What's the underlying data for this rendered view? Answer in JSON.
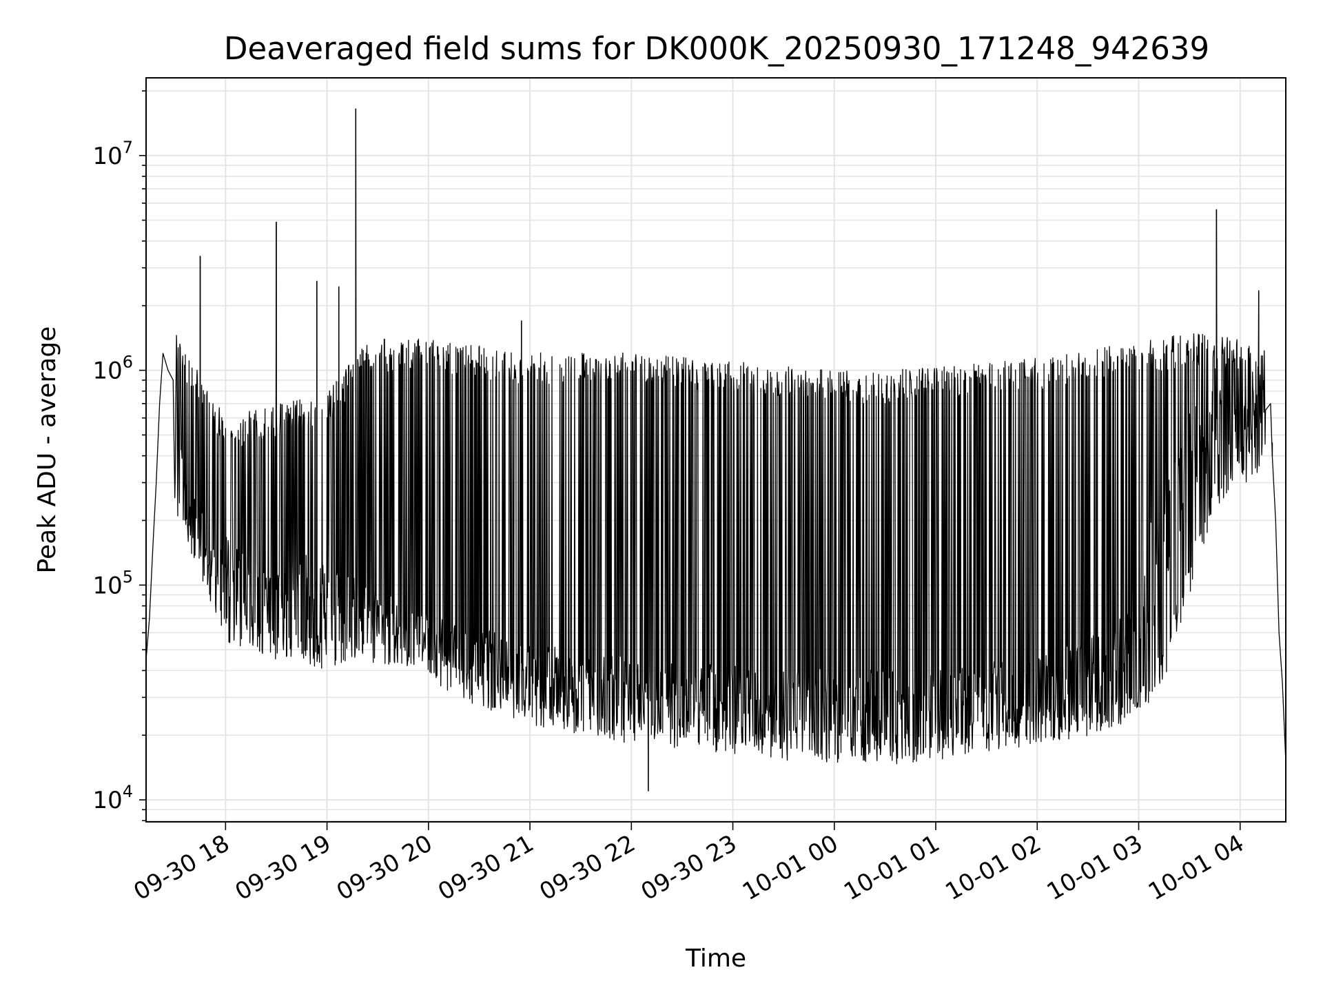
{
  "chart_data": {
    "type": "line",
    "title": "Deaveraged field sums for DK000K_20250930_171248_942639",
    "xlabel": "Time",
    "ylabel": "Peak ADU - average",
    "x_axis": "datetime",
    "y_scale": "log",
    "grid": true,
    "legend": "none",
    "line_color": "#000000",
    "xlim": [
      "2025-09-30 17:13",
      "2025-10-01 04:27"
    ],
    "ylim": [
      7900,
      23000000
    ],
    "x_ticks": [
      {
        "t": "2025-09-30 18:00",
        "label": "09-30 18"
      },
      {
        "t": "2025-09-30 19:00",
        "label": "09-30 19"
      },
      {
        "t": "2025-09-30 20:00",
        "label": "09-30 20"
      },
      {
        "t": "2025-09-30 21:00",
        "label": "09-30 21"
      },
      {
        "t": "2025-09-30 22:00",
        "label": "09-30 22"
      },
      {
        "t": "2025-09-30 23:00",
        "label": "09-30 23"
      },
      {
        "t": "2025-10-01 00:00",
        "label": "10-01 00"
      },
      {
        "t": "2025-10-01 01:00",
        "label": "10-01 01"
      },
      {
        "t": "2025-10-01 02:00",
        "label": "10-01 02"
      },
      {
        "t": "2025-10-01 03:00",
        "label": "10-01 03"
      },
      {
        "t": "2025-10-01 04:00",
        "label": "10-01 04"
      }
    ],
    "y_ticks": [
      {
        "value": 10000,
        "base": "10",
        "exp": "4"
      },
      {
        "value": 100000,
        "base": "10",
        "exp": "5"
      },
      {
        "value": 1000000,
        "base": "10",
        "exp": "6"
      },
      {
        "value": 10000000,
        "base": "10",
        "exp": "7"
      }
    ],
    "series": [
      {
        "points": [
          [
            "2025-09-30 17:13",
            45000
          ],
          [
            "2025-09-30 17:15",
            70000
          ],
          [
            "2025-09-30 17:17",
            150000
          ],
          [
            "2025-09-30 17:19",
            300000
          ],
          [
            "2025-09-30 17:21",
            700000
          ],
          [
            "2025-09-30 17:23",
            1200000
          ],
          [
            "2025-09-30 17:26",
            1000000
          ],
          [
            "2025-09-30 17:29",
            900000
          ],
          [
            "2025-09-30 17:32",
            500000
          ],
          [
            "2025-09-30 17:35",
            300000
          ],
          [
            "2025-09-30 17:40",
            250000
          ],
          [
            "2025-09-30 17:50",
            150000
          ],
          [
            "2025-09-30 18:00",
            120000
          ],
          [
            "2025-09-30 18:15",
            100000
          ],
          [
            "2025-09-30 18:30",
            95000
          ],
          [
            "2025-09-30 18:45",
            100000
          ],
          [
            "2025-09-30 19:00",
            90000
          ],
          [
            "2025-09-30 19:15",
            85000
          ],
          [
            "2025-09-30 19:30",
            75000
          ],
          [
            "2025-09-30 19:45",
            70000
          ],
          [
            "2025-09-30 20:00",
            60000
          ],
          [
            "2025-09-30 20:20",
            52000
          ],
          [
            "2025-09-30 20:40",
            47000
          ],
          [
            "2025-09-30 21:00",
            42000
          ],
          [
            "2025-09-30 21:30",
            38000
          ],
          [
            "2025-09-30 22:00",
            35000
          ],
          [
            "2025-09-30 22:30",
            33000
          ],
          [
            "2025-09-30 23:00",
            32000
          ],
          [
            "2025-09-30 23:30",
            31000
          ],
          [
            "2025-10-01 00:00",
            30000
          ],
          [
            "2025-10-01 00:30",
            30000
          ],
          [
            "2025-10-01 01:00",
            31000
          ],
          [
            "2025-10-01 01:30",
            33000
          ],
          [
            "2025-10-01 02:00",
            36000
          ],
          [
            "2025-10-01 02:30",
            42000
          ],
          [
            "2025-10-01 02:45",
            50000
          ],
          [
            "2025-10-01 03:00",
            80000
          ],
          [
            "2025-10-01 03:15",
            150000
          ],
          [
            "2025-10-01 03:30",
            350000
          ],
          [
            "2025-10-01 03:45",
            600000
          ],
          [
            "2025-10-01 04:00",
            500000
          ],
          [
            "2025-10-01 04:10",
            700000
          ],
          [
            "2025-10-01 04:15",
            1000000
          ],
          [
            "2025-10-01 04:18",
            700000
          ],
          [
            "2025-10-01 04:21",
            200000
          ],
          [
            "2025-10-01 04:23",
            60000
          ],
          [
            "2025-10-01 04:25",
            35000
          ],
          [
            "2025-10-01 04:27",
            15000
          ]
        ],
        "upper_envelope": [
          [
            "2025-09-30 17:30",
            1500000
          ],
          [
            "2025-09-30 18:00",
            600000
          ],
          [
            "2025-09-30 18:30",
            700000
          ],
          [
            "2025-09-30 19:00",
            800000
          ],
          [
            "2025-09-30 19:25",
            1400000
          ],
          [
            "2025-09-30 20:00",
            1400000
          ],
          [
            "2025-09-30 20:30",
            1300000
          ],
          [
            "2025-09-30 21:00",
            1200000
          ],
          [
            "2025-09-30 21:30",
            1250000
          ],
          [
            "2025-09-30 22:00",
            1200000
          ],
          [
            "2025-09-30 22:30",
            1150000
          ],
          [
            "2025-09-30 23:00",
            1100000
          ],
          [
            "2025-09-30 23:30",
            1050000
          ],
          [
            "2025-10-01 00:00",
            1000000
          ],
          [
            "2025-10-01 00:30",
            1000000
          ],
          [
            "2025-10-01 01:00",
            1050000
          ],
          [
            "2025-10-01 01:30",
            1100000
          ],
          [
            "2025-10-01 02:00",
            1150000
          ],
          [
            "2025-10-01 02:30",
            1250000
          ],
          [
            "2025-10-01 03:00",
            1350000
          ],
          [
            "2025-10-01 03:30",
            1500000
          ],
          [
            "2025-10-01 04:00",
            1400000
          ],
          [
            "2025-10-01 04:15",
            1200000
          ]
        ],
        "lower_envelope": [
          [
            "2025-09-30 17:30",
            250000
          ],
          [
            "2025-09-30 18:00",
            60000
          ],
          [
            "2025-09-30 18:30",
            50000
          ],
          [
            "2025-09-30 19:00",
            45000
          ],
          [
            "2025-09-30 19:30",
            48000
          ],
          [
            "2025-09-30 20:00",
            40000
          ],
          [
            "2025-09-30 20:30",
            30000
          ],
          [
            "2025-09-30 21:00",
            25000
          ],
          [
            "2025-09-30 21:30",
            22000
          ],
          [
            "2025-09-30 22:00",
            20000
          ],
          [
            "2025-09-30 22:30",
            19000
          ],
          [
            "2025-09-30 23:00",
            18000
          ],
          [
            "2025-09-30 23:30",
            17000
          ],
          [
            "2025-10-01 00:00",
            16500
          ],
          [
            "2025-10-01 00:30",
            16000
          ],
          [
            "2025-10-01 01:00",
            17000
          ],
          [
            "2025-10-01 01:30",
            18500
          ],
          [
            "2025-10-01 02:00",
            20000
          ],
          [
            "2025-10-01 02:30",
            22000
          ],
          [
            "2025-10-01 03:00",
            26000
          ],
          [
            "2025-10-01 03:15",
            40000
          ],
          [
            "2025-10-01 03:30",
            100000
          ],
          [
            "2025-10-01 03:45",
            250000
          ],
          [
            "2025-10-01 04:00",
            300000
          ],
          [
            "2025-10-01 04:15",
            400000
          ]
        ],
        "spikes": [
          [
            "2025-09-30 17:45",
            3400000
          ],
          [
            "2025-09-30 18:30",
            4900000
          ],
          [
            "2025-09-30 18:54",
            2600000
          ],
          [
            "2025-09-30 19:07",
            2450000
          ],
          [
            "2025-09-30 19:17",
            16500000
          ],
          [
            "2025-09-30 20:55",
            1700000
          ],
          [
            "2025-09-30 22:10",
            11000
          ],
          [
            "2025-10-01 03:46",
            5600000
          ],
          [
            "2025-10-01 04:11",
            2350000
          ],
          [
            "2025-10-01 04:19",
            400000
          ]
        ]
      }
    ]
  }
}
